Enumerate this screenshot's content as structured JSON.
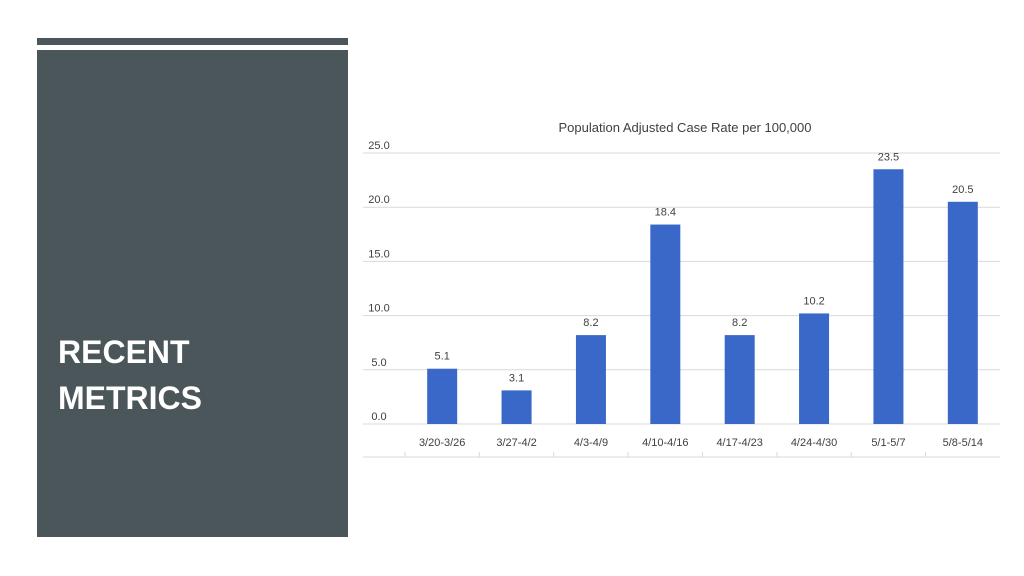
{
  "slide": {
    "title_line1": "RECENT",
    "title_line2": "METRICS",
    "panel_color": "#4a5659",
    "title_color": "#ffffff"
  },
  "chart_data": {
    "type": "bar",
    "title": "Population Adjusted Case Rate per 100,000",
    "xlabel": "",
    "ylabel": "",
    "categories": [
      "3/20-3/26",
      "3/27-4/2",
      "4/3-4/9",
      "4/10-4/16",
      "4/17-4/23",
      "4/24-4/30",
      "5/1-5/7",
      "5/8-5/14"
    ],
    "values": [
      5.1,
      3.1,
      8.2,
      18.4,
      8.2,
      10.2,
      23.5,
      20.5
    ],
    "data_labels": [
      "5.1",
      "3.1",
      "8.2",
      "18.4",
      "8.2",
      "10.2",
      "23.5",
      "20.5"
    ],
    "ylim": [
      0,
      25
    ],
    "yticks": [
      0,
      5,
      10,
      15,
      20,
      25
    ],
    "ytick_labels": [
      "0.0",
      "5.0",
      "10.0",
      "15.0",
      "20.0",
      "25.0"
    ],
    "grid": true,
    "legend": "none",
    "bar_color": "#3a68c8",
    "grid_color": "#d9d9d9",
    "text_color": "#404040"
  }
}
